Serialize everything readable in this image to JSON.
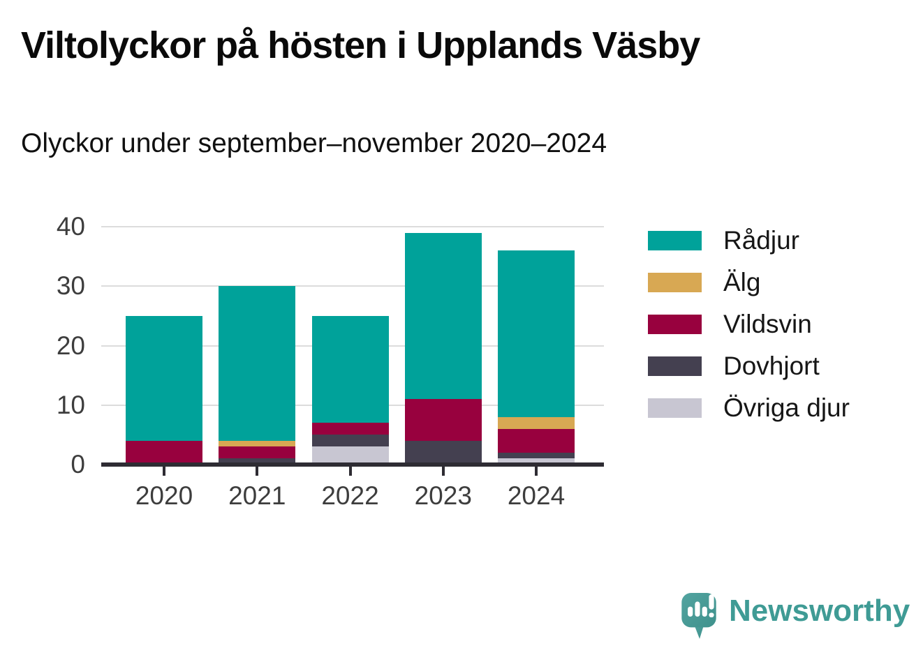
{
  "header": {
    "title": "Viltolyckor på hösten i Upplands Väsby",
    "subtitle": "Olyckor under september–november 2020–2024"
  },
  "chart_data": {
    "type": "bar",
    "stacked": true,
    "title": "Viltolyckor på hösten i Upplands Väsby",
    "subtitle": "Olyckor under september–november 2020–2024",
    "categories": [
      "2020",
      "2021",
      "2022",
      "2023",
      "2024"
    ],
    "series": [
      {
        "name": "Övriga djur",
        "color": "#c8c6d2",
        "values": [
          0,
          0,
          3,
          0,
          1
        ]
      },
      {
        "name": "Dovhjort",
        "color": "#444050",
        "values": [
          0,
          1,
          2,
          4,
          1
        ]
      },
      {
        "name": "Vildsvin",
        "color": "#98013e",
        "values": [
          4,
          2,
          2,
          7,
          4
        ]
      },
      {
        "name": "Älg",
        "color": "#d8a853",
        "values": [
          0,
          1,
          0,
          0,
          2
        ]
      },
      {
        "name": "Rådjur",
        "color": "#00a29a",
        "values": [
          21,
          26,
          18,
          28,
          28
        ]
      }
    ],
    "totals": [
      25,
      30,
      25,
      39,
      36
    ],
    "yticks": [
      0,
      10,
      20,
      30,
      40
    ],
    "ylim": [
      0,
      40
    ],
    "xlabel": "",
    "ylabel": "",
    "grid": "horizontal",
    "legend_position": "right",
    "legend_order_top_to_bottom": [
      "Rådjur",
      "Älg",
      "Vildsvin",
      "Dovhjort",
      "Övriga djur"
    ]
  },
  "footer": {
    "brand": "Newsworthy"
  },
  "icons": {
    "brand": "newsworthy-speech-bubble-chart-icon"
  },
  "colors": {
    "axis": "#2e2c33",
    "gridline": "#dcdcdc",
    "tick_label": "#3d3d3d",
    "brand_teal": "#3f9b95",
    "logo_bubble": "#4a9c96"
  }
}
